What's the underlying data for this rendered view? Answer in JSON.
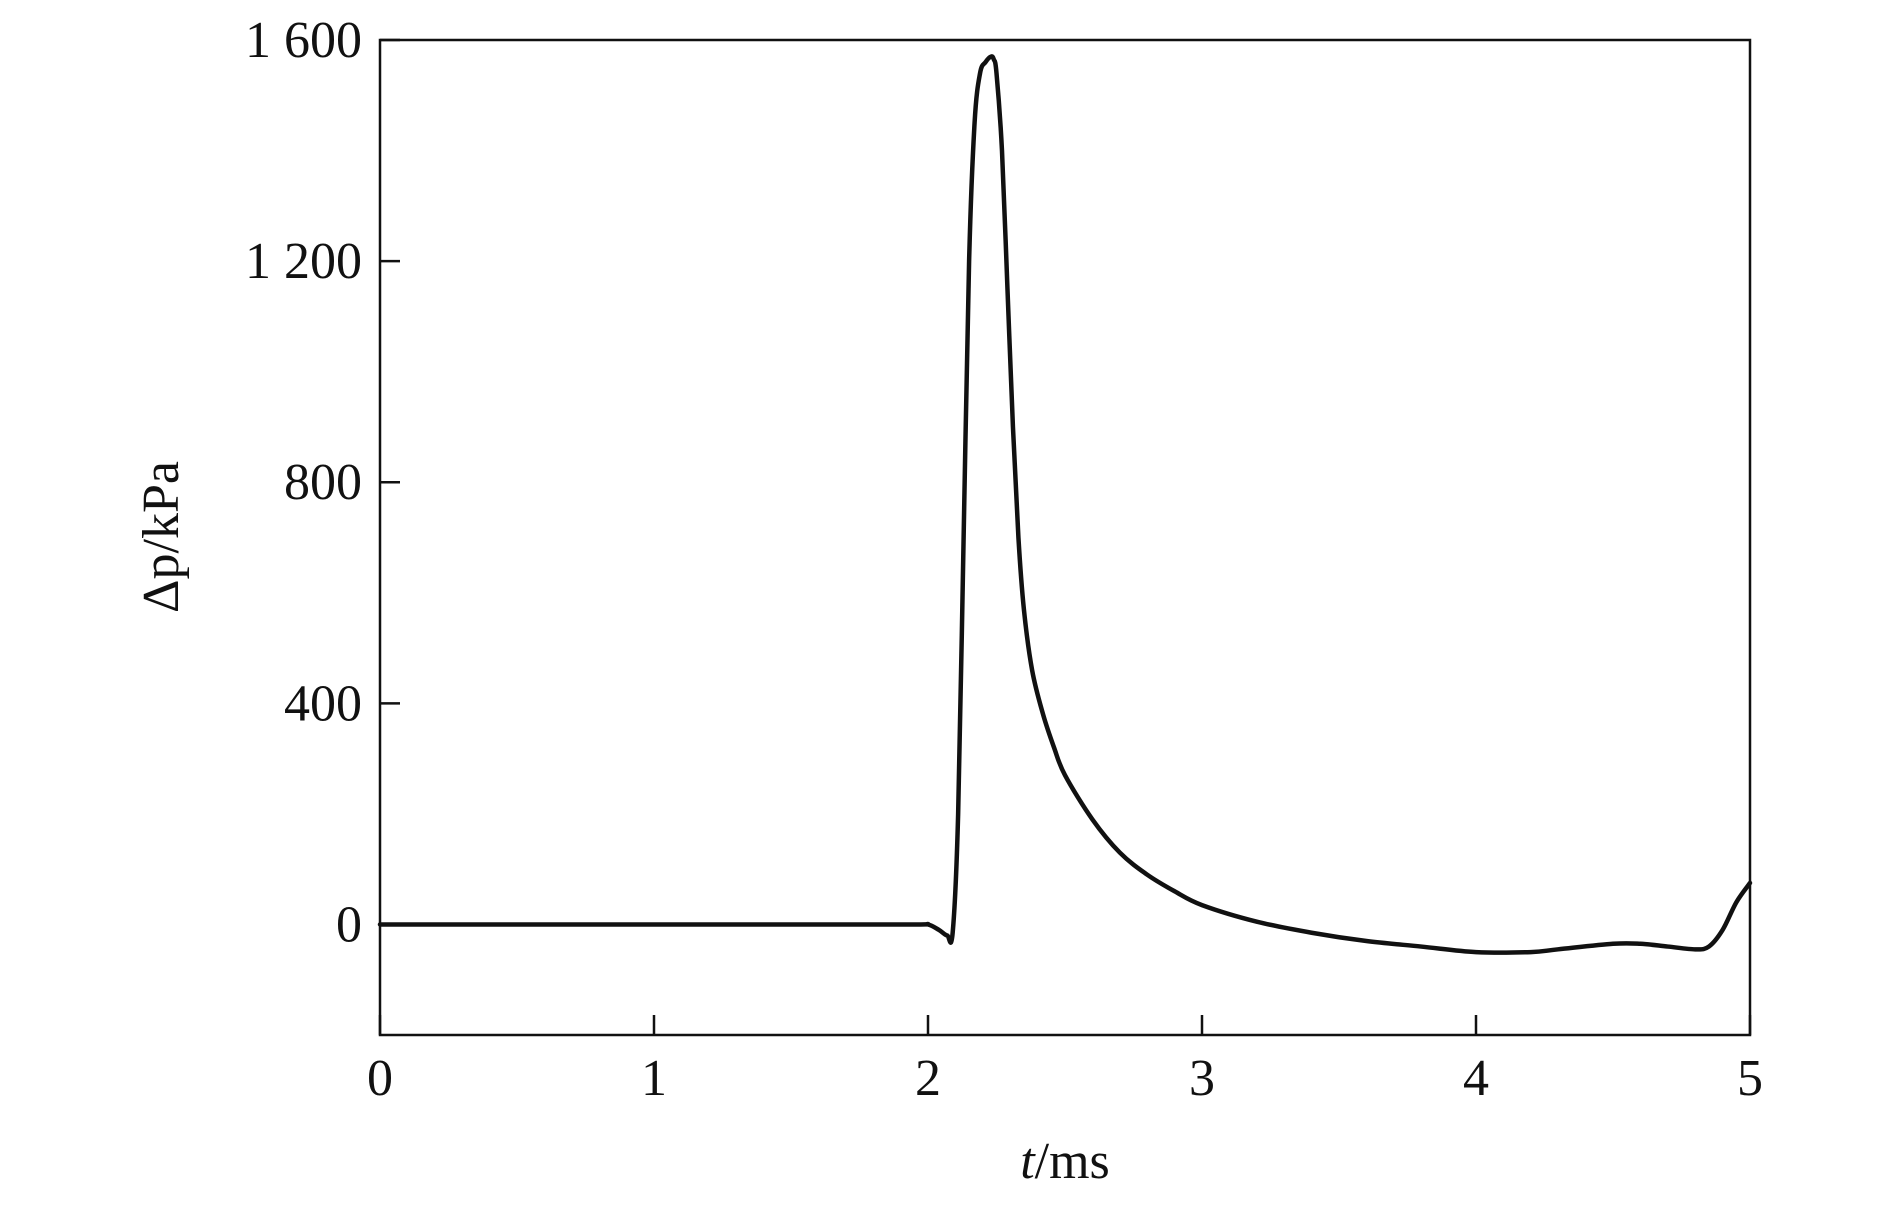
{
  "chart_data": {
    "type": "line",
    "title": "",
    "xlabel": {
      "var": "t",
      "unit": "/ms"
    },
    "ylabel": {
      "var": "Δp",
      "unit": "/kPa"
    },
    "xlim": [
      0,
      5
    ],
    "ylim": [
      -200,
      1600
    ],
    "xticks": [
      0,
      1,
      2,
      3,
      4,
      5
    ],
    "xtick_labels": [
      "0",
      "1",
      "2",
      "3",
      "4",
      "5"
    ],
    "yticks": [
      0,
      400,
      800,
      1200,
      1600
    ],
    "ytick_labels": [
      "0",
      "400",
      "800",
      "1 200",
      "1 600"
    ],
    "grid": false,
    "legend": "none",
    "line_color": "#111111",
    "series": [
      {
        "x": [
          0,
          0.5,
          1.0,
          1.5,
          1.95,
          2.0,
          2.04,
          2.07,
          2.09,
          2.11,
          2.13,
          2.15,
          2.17,
          2.19,
          2.21,
          2.23,
          2.24,
          2.25,
          2.27,
          2.29,
          2.31,
          2.33,
          2.35,
          2.38,
          2.42,
          2.46,
          2.5,
          2.6,
          2.7,
          2.8,
          2.9,
          3.0,
          3.2,
          3.4,
          3.6,
          3.8,
          4.0,
          4.2,
          4.3,
          4.5,
          4.6,
          4.7,
          4.8,
          4.85,
          4.9,
          4.95,
          5.0
        ],
        "y": [
          0,
          0,
          0,
          0,
          0,
          0,
          -10,
          -20,
          -15,
          200,
          700,
          1200,
          1450,
          1540,
          1560,
          1570,
          1565,
          1540,
          1400,
          1150,
          900,
          700,
          570,
          460,
          380,
          320,
          270,
          190,
          130,
          90,
          60,
          35,
          5,
          -15,
          -30,
          -40,
          -50,
          -50,
          -45,
          -35,
          -35,
          -40,
          -45,
          -40,
          -10,
          40,
          75
        ]
      }
    ]
  }
}
